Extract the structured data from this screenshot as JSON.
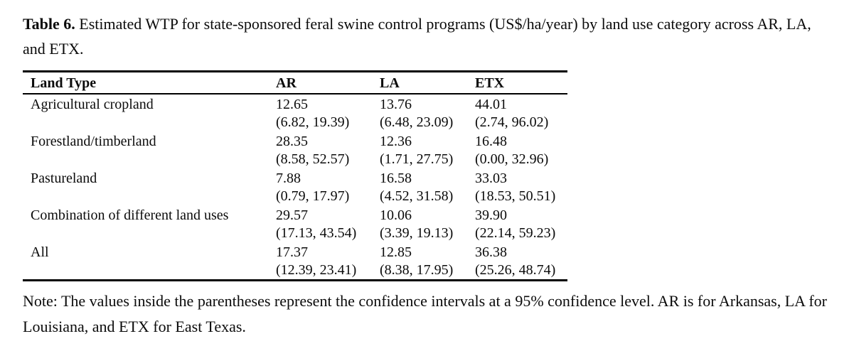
{
  "caption": {
    "label": "Table 6.",
    "text": "Estimated WTP for state-sponsored feral swine control programs (US$/ha/year) by land use category across AR, LA, and ETX."
  },
  "table": {
    "columns": [
      "Land Type",
      "AR",
      "LA",
      "ETX"
    ],
    "rows": [
      {
        "land_type": "Agricultural cropland",
        "ar": {
          "mean": "12.65",
          "ci": "(6.82, 19.39)"
        },
        "la": {
          "mean": "13.76",
          "ci": "(6.48, 23.09)"
        },
        "etx": {
          "mean": "44.01",
          "ci": "(2.74, 96.02)"
        }
      },
      {
        "land_type": "Forestland/timberland",
        "ar": {
          "mean": "28.35",
          "ci": "(8.58, 52.57)"
        },
        "la": {
          "mean": "12.36",
          "ci": "(1.71, 27.75)"
        },
        "etx": {
          "mean": "16.48",
          "ci": "(0.00, 32.96)"
        }
      },
      {
        "land_type": "Pastureland",
        "ar": {
          "mean": "7.88",
          "ci": "(0.79, 17.97)"
        },
        "la": {
          "mean": "16.58",
          "ci": "(4.52, 31.58)"
        },
        "etx": {
          "mean": "33.03",
          "ci": "(18.53, 50.51)"
        }
      },
      {
        "land_type": "Combination of different land uses",
        "ar": {
          "mean": "29.57",
          "ci": "(17.13, 43.54)"
        },
        "la": {
          "mean": "10.06",
          "ci": "(3.39, 19.13)"
        },
        "etx": {
          "mean": "39.90",
          "ci": "(22.14, 59.23)"
        }
      },
      {
        "land_type": "All",
        "ar": {
          "mean": "17.37",
          "ci": "(12.39, 23.41)"
        },
        "la": {
          "mean": "12.85",
          "ci": "(8.38, 17.95)"
        },
        "etx": {
          "mean": "36.38",
          "ci": "(25.26, 48.74)"
        }
      }
    ]
  },
  "note": "Note: The values inside the parentheses represent the confidence intervals at a 95% confidence level. AR is for Arkansas, LA for Louisiana, and ETX for East Texas."
}
